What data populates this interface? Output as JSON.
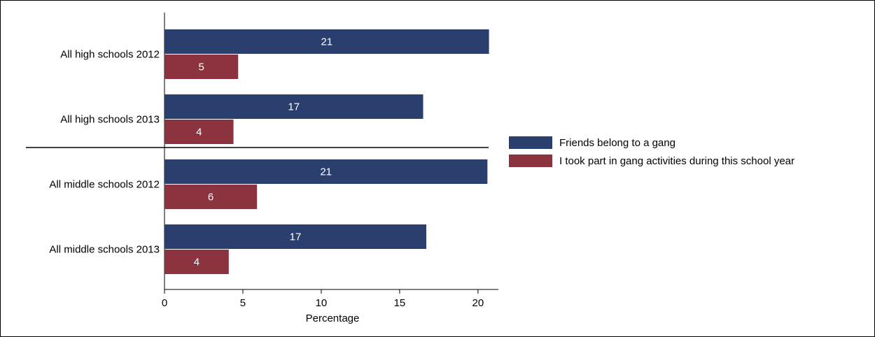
{
  "chart_data": {
    "type": "bar",
    "orientation": "horizontal",
    "categories": [
      "All high schools 2012",
      "All high schools 2013",
      "All middle schools 2012",
      "All middle schools 2013"
    ],
    "series": [
      {
        "name": "Friends belong to a gang",
        "values": [
          20.7,
          16.5,
          20.6,
          16.7
        ],
        "data_labels": [
          "21",
          "17",
          "21",
          "17"
        ],
        "color": "#2b3f6e"
      },
      {
        "name": "I took part in gang activities during this school year",
        "values": [
          4.7,
          4.4,
          5.9,
          4.1
        ],
        "data_labels": [
          "5",
          "4",
          "6",
          "4"
        ],
        "color": "#8b3440"
      }
    ],
    "xlabel": "Percentage",
    "ylabel": "",
    "xlim": [
      0,
      21.3
    ],
    "xticks": [
      0,
      5,
      10,
      15,
      20
    ],
    "xtick_labels": [
      "0",
      "5",
      "10",
      "15",
      "20"
    ],
    "grid": false,
    "legend_position": "right",
    "group_separator_after_category": 1
  }
}
